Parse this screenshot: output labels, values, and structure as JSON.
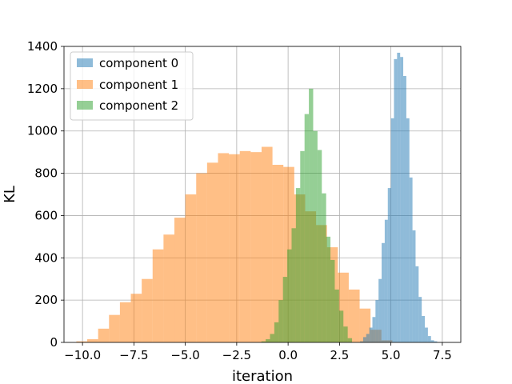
{
  "chart_data": {
    "type": "histogram",
    "xlabel": "iteration",
    "ylabel": "KL",
    "xlim": [
      -10.9,
      8.4
    ],
    "ylim": [
      0,
      1400
    ],
    "x_ticks": [
      -10.0,
      -7.5,
      -5.0,
      -2.5,
      0.0,
      2.5,
      5.0,
      7.5
    ],
    "x_tick_labels": [
      "−10.0",
      "−7.5",
      "−5.0",
      "−2.5",
      "0.0",
      "2.5",
      "5.0",
      "7.5"
    ],
    "y_ticks": [
      0,
      200,
      400,
      600,
      800,
      1000,
      1200,
      1400
    ],
    "y_tick_labels": [
      "0",
      "200",
      "400",
      "600",
      "800",
      "1000",
      "1200",
      "1400"
    ],
    "grid": true,
    "legend_position": "top-left",
    "series": [
      {
        "name": "component 1",
        "color": "#ff7f0e",
        "opacity": 0.5,
        "bin_start": -10.3,
        "bin_width": 0.53,
        "counts": [
          5,
          15,
          65,
          130,
          190,
          230,
          300,
          440,
          510,
          590,
          700,
          800,
          850,
          895,
          890,
          905,
          900,
          925,
          840,
          830,
          700,
          620,
          555,
          450,
          330,
          250,
          160,
          60,
          10
        ]
      },
      {
        "name": "component 2",
        "color": "#2ca02c",
        "opacity": 0.5,
        "bin_start": -1.3,
        "bin_width": 0.21,
        "counts": [
          5,
          15,
          40,
          95,
          200,
          310,
          440,
          540,
          730,
          905,
          1080,
          1200,
          1000,
          910,
          705,
          500,
          390,
          250,
          150,
          75,
          20
        ]
      },
      {
        "name": "component 0",
        "color": "#1f77b4",
        "opacity": 0.5,
        "bin_start": 3.5,
        "bin_width": 0.15,
        "counts": [
          5,
          25,
          40,
          70,
          120,
          200,
          300,
          470,
          580,
          730,
          1060,
          1340,
          1370,
          1350,
          1260,
          1060,
          780,
          530,
          360,
          215,
          125,
          70,
          30,
          10,
          5
        ]
      }
    ]
  },
  "legend": {
    "items": [
      {
        "label": "component 0",
        "color": "#1f77b4"
      },
      {
        "label": "component 1",
        "color": "#ff7f0e"
      },
      {
        "label": "component 2",
        "color": "#2ca02c"
      }
    ]
  }
}
